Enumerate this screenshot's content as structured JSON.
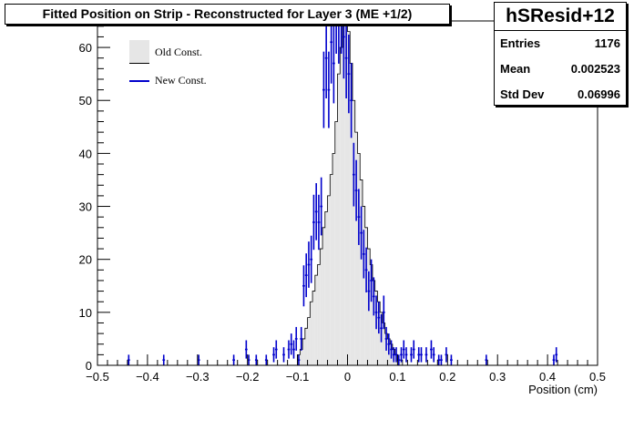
{
  "title": "Fitted Position on Strip - Reconstructed for Layer 3  (ME +1/2)",
  "stats": {
    "name": "hSResid+12",
    "rows": [
      {
        "label": "Entries",
        "value": "1176"
      },
      {
        "label": "Mean",
        "value": "0.002523"
      },
      {
        "label": "Std Dev",
        "value": "0.06996"
      }
    ]
  },
  "legend": [
    {
      "label": "Old Const.",
      "style": "fill",
      "color": "#e6e6e6"
    },
    {
      "label": "New Const.",
      "style": "line",
      "color": "#0000cc"
    }
  ],
  "chart_data": {
    "type": "bar",
    "xlabel": "Position (cm)",
    "ylabel": "",
    "xlim": [
      -0.5,
      0.5
    ],
    "ylim": [
      0,
      65
    ],
    "x_ticks": [
      "−0.5",
      "−0.4",
      "−0.3",
      "−0.2",
      "−0.1",
      "0",
      "0.1",
      "0.2",
      "0.3",
      "0.4",
      "0.5"
    ],
    "x_tick_values": [
      -0.5,
      -0.4,
      -0.3,
      -0.2,
      -0.1,
      0,
      0.1,
      0.2,
      0.3,
      0.4,
      0.5
    ],
    "y_ticks": [
      0,
      10,
      20,
      30,
      40,
      50,
      60
    ],
    "bin_width": 0.005,
    "series": [
      {
        "name": "Old Const.",
        "style": "filled-histogram",
        "color": "#e6e6e6",
        "x": [
          -0.1,
          -0.095,
          -0.09,
          -0.085,
          -0.08,
          -0.075,
          -0.07,
          -0.065,
          -0.06,
          -0.055,
          -0.05,
          -0.045,
          -0.04,
          -0.035,
          -0.03,
          -0.025,
          -0.02,
          -0.015,
          -0.01,
          -0.005,
          0,
          0.005,
          0.01,
          0.015,
          0.02,
          0.025,
          0.03,
          0.035,
          0.04,
          0.045,
          0.05,
          0.055,
          0.06,
          0.065,
          0.07,
          0.075,
          0.08,
          0.085,
          0.09,
          0.095,
          0.1,
          0.105
        ],
        "values": [
          2,
          3,
          5,
          7,
          9,
          12,
          14,
          17,
          19,
          22,
          26,
          29,
          32,
          36,
          40,
          46,
          55,
          60,
          66,
          66,
          63,
          57,
          50,
          44,
          40,
          35,
          30,
          26,
          22,
          19,
          16,
          14,
          12,
          10,
          8,
          6,
          5,
          4,
          3,
          2,
          1,
          1
        ]
      },
      {
        "name": "New Const.",
        "style": "step-with-errors",
        "color": "#0000cc",
        "x": [
          -0.44,
          -0.37,
          -0.3,
          -0.23,
          -0.205,
          -0.2,
          -0.185,
          -0.165,
          -0.15,
          -0.145,
          -0.13,
          -0.12,
          -0.115,
          -0.11,
          -0.105,
          -0.1,
          -0.095,
          -0.09,
          -0.085,
          -0.08,
          -0.075,
          -0.07,
          -0.065,
          -0.06,
          -0.055,
          -0.05,
          -0.045,
          -0.04,
          -0.035,
          -0.03,
          -0.025,
          -0.02,
          -0.015,
          -0.01,
          -0.005,
          0,
          0.005,
          0.01,
          0.015,
          0.02,
          0.025,
          0.03,
          0.035,
          0.04,
          0.045,
          0.05,
          0.055,
          0.06,
          0.065,
          0.07,
          0.075,
          0.08,
          0.085,
          0.09,
          0.095,
          0.1,
          0.105,
          0.11,
          0.115,
          0.125,
          0.13,
          0.14,
          0.145,
          0.155,
          0.165,
          0.17,
          0.18,
          0.185,
          0.195,
          0.205,
          0.275,
          0.41,
          0.415
        ],
        "values": [
          1,
          1,
          1,
          1,
          3,
          1,
          1,
          1,
          2,
          3,
          2,
          3,
          4,
          3,
          5,
          1,
          5,
          15,
          17,
          19,
          20,
          27,
          29,
          27,
          30,
          52,
          58,
          52,
          61,
          57,
          67,
          65,
          67,
          62,
          58,
          55,
          50,
          36,
          33,
          28,
          25,
          21,
          18,
          14,
          16,
          13,
          10,
          9,
          7,
          10,
          5,
          4,
          3,
          2,
          2,
          1,
          2,
          3,
          2,
          2,
          3,
          2,
          2,
          2,
          3,
          2,
          1,
          1,
          2,
          1,
          1,
          1,
          2
        ]
      }
    ]
  }
}
